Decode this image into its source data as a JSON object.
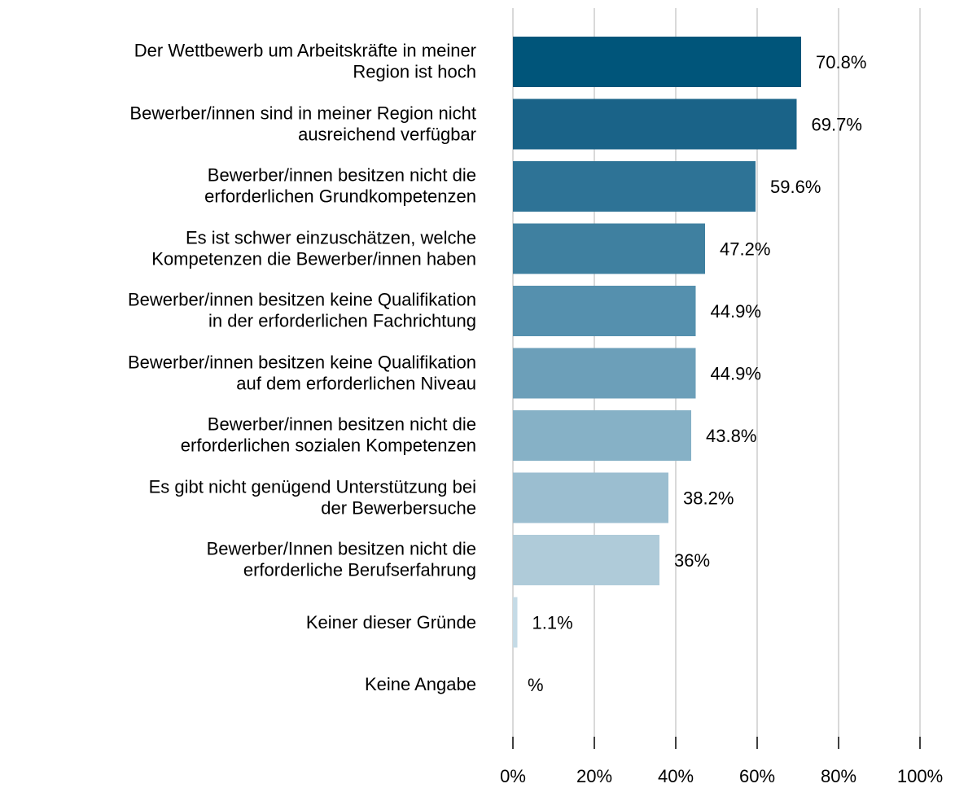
{
  "chart_data": {
    "type": "bar",
    "orientation": "horizontal",
    "categories": [
      "Der Wettbewerb um Arbeitskräfte in meiner\nRegion ist hoch",
      "Bewerber/innen sind in meiner Region nicht\nausreichend verfügbar",
      "Bewerber/innen besitzen nicht die\nerforderlichen Grundkompetenzen",
      "Es ist schwer einzuschätzen, welche\nKompetenzen die Bewerber/innen haben",
      "Bewerber/innen besitzen keine Qualifikation\nin der erforderlichen Fachrichtung",
      "Bewerber/innen besitzen keine Qualifikation\nauf dem erforderlichen Niveau",
      "Bewerber/innen besitzen nicht die\nerforderlichen sozialen Kompetenzen",
      "Es gibt nicht genügend Unterstützung bei\nder Bewerbersuche",
      "Bewerber/Innen besitzen nicht die\nerforderliche Berufserfahrung",
      "Keiner dieser Gründe",
      "Keine Angabe"
    ],
    "values": [
      70.8,
      69.7,
      59.6,
      47.2,
      44.9,
      44.9,
      43.8,
      38.2,
      36,
      1.1,
      null
    ],
    "value_labels": [
      "70.8%",
      "69.7%",
      "59.6%",
      "47.2%",
      "44.9%",
      "44.9%",
      "43.8%",
      "38.2%",
      "36%",
      "1.1%",
      "%"
    ],
    "colors": [
      "#00557a",
      "#1a6388",
      "#2e7396",
      "#3f80a0",
      "#5590ae",
      "#6c9fb9",
      "#86b1c6",
      "#9bbed0",
      "#afcbd9",
      "#c5dbe6",
      "#d5e5ee"
    ],
    "xlim": [
      0,
      100
    ],
    "xticks": [
      {
        "value": 0,
        "label": "0%"
      },
      {
        "value": 20,
        "label": "20%"
      },
      {
        "value": 40,
        "label": "40%"
      },
      {
        "value": 60,
        "label": "60%"
      },
      {
        "value": 80,
        "label": "80%"
      },
      {
        "value": 100,
        "label": "100%"
      }
    ],
    "grid": true
  }
}
